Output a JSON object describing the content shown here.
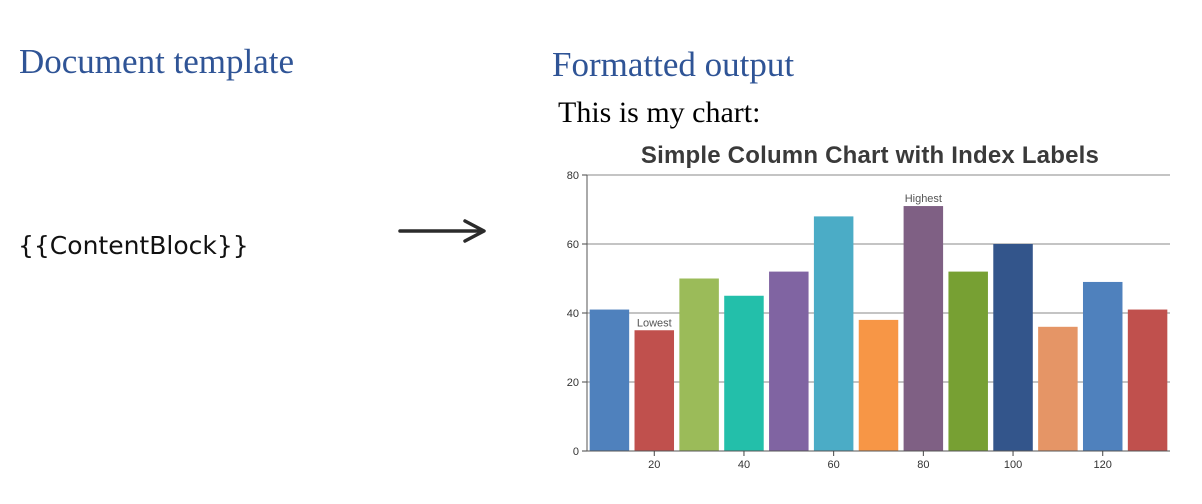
{
  "left_panel": {
    "heading": "Document template",
    "placeholder": "{{ContentBlock}}"
  },
  "arrow": {
    "icon": "right-arrow-icon"
  },
  "right_panel": {
    "heading": "Formatted output",
    "intro": "This is my chart:"
  },
  "colors": {
    "heading": "#2f5496",
    "bars": [
      "#4f81bd",
      "#c0504d",
      "#9bbb59",
      "#23bfaa",
      "#8064a2",
      "#4bacc6",
      "#f79646",
      "#7f6084",
      "#77a033",
      "#33558b",
      "#e59566",
      "#4f81bd",
      "#c0504d"
    ]
  },
  "chart_data": {
    "type": "bar",
    "title": "Simple Column Chart with Index Labels",
    "x": [
      10,
      20,
      30,
      40,
      50,
      60,
      70,
      80,
      90,
      100,
      110,
      120,
      130
    ],
    "values": [
      41,
      35,
      50,
      45,
      52,
      68,
      38,
      71,
      52,
      60,
      36,
      49,
      41
    ],
    "index_labels": [
      {
        "index": 1,
        "text": "Lowest"
      },
      {
        "index": 7,
        "text": "Highest"
      }
    ],
    "x_ticks": [
      20,
      40,
      60,
      80,
      100,
      120
    ],
    "y_ticks": [
      0,
      20,
      40,
      60,
      80
    ],
    "ylim": [
      0,
      80
    ],
    "xlim": [
      5,
      135
    ],
    "grid": true,
    "xlabel": "",
    "ylabel": ""
  }
}
